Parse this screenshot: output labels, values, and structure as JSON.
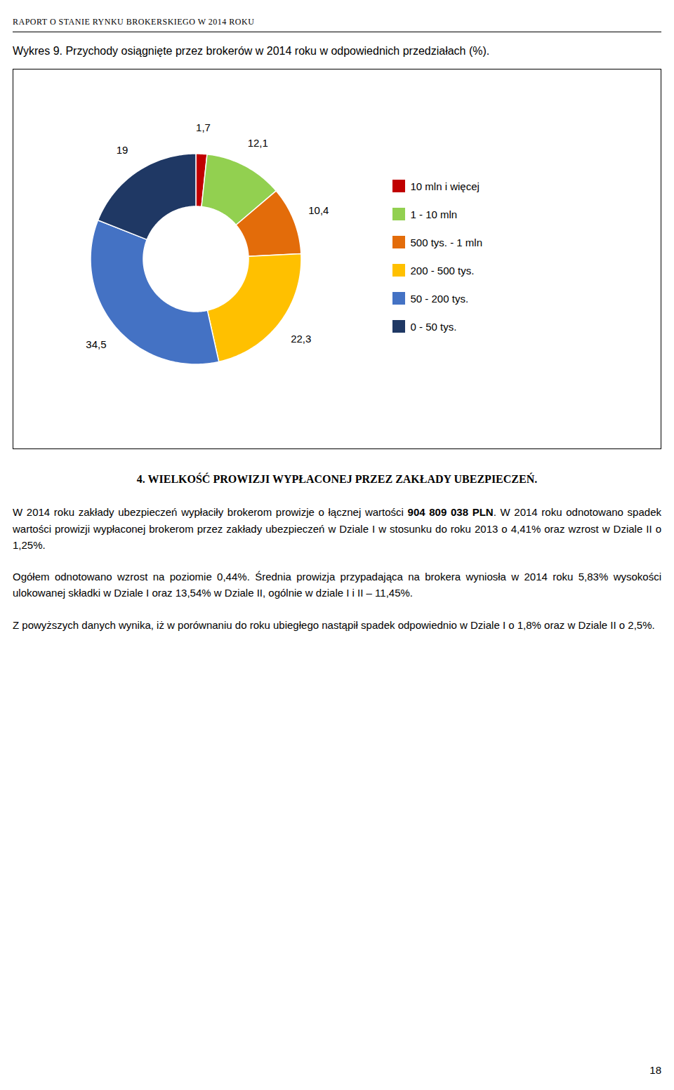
{
  "header": "RAPORT O STANIE RYNKU BROKERSKIEGO W 2014 ROKU",
  "section_heading": "4. WIELKOŚĆ PROWIZJI WYPŁACONEJ PRZEZ ZAKŁADY UBEZPIECZEŃ.",
  "paragraphs": [
    [
      "W 2014 roku zakłady ubezpieczeń wypłaciły brokerom prowizje o łącznej wartości",
      "904 809 038 PLN",
      ". W 2014 roku odnotowano spadek wartości prowizji wypłaconej brokerom przez zakłady ubezpieczeń w Dziale I w stosunku do roku 2013 o 4,41% oraz wzrost w Dziale II o 1,25%."
    ],
    [
      "Ogółem odnotowano wzrost na poziomie 0,44%. Średnia prowizja przypadająca na brokera wyniosła w 2014 roku 5,83% wysokości ulokowanej składki w Dziale I oraz 13,54% w Dziale II, ogólnie w dziale I i II – 11,45%."
    ],
    [
      "Z powyższych danych wynika, iż w porównaniu do roku ubiegłego nastąpił spadek odpowiednio w Dziale I o 1,8% oraz w Dziale II o 2,5%."
    ]
  ],
  "page_number": "18",
  "chart_data": {
    "type": "pie",
    "title": "Wykres 9. Przychody osiągnięte przez brokerów w 2014 roku w odpowiednich przedziałach (%).",
    "categories": [
      "10 mln i więcej",
      "1 - 10 mln",
      "500 tys. - 1 mln",
      "200 - 500 tys.",
      "50 - 200 tys.",
      "0 - 50 tys."
    ],
    "values": [
      1.7,
      12.1,
      10.4,
      22.3,
      34.5,
      19.0
    ],
    "value_labels": [
      "1,7",
      "12,1",
      "10,4",
      "22,3",
      "34,5",
      "19"
    ],
    "colors": [
      "#c00000",
      "#92d050",
      "#e36c0a",
      "#ffc000",
      "#4472c4",
      "#1f3864"
    ],
    "data_labels": true,
    "legend": "right"
  }
}
